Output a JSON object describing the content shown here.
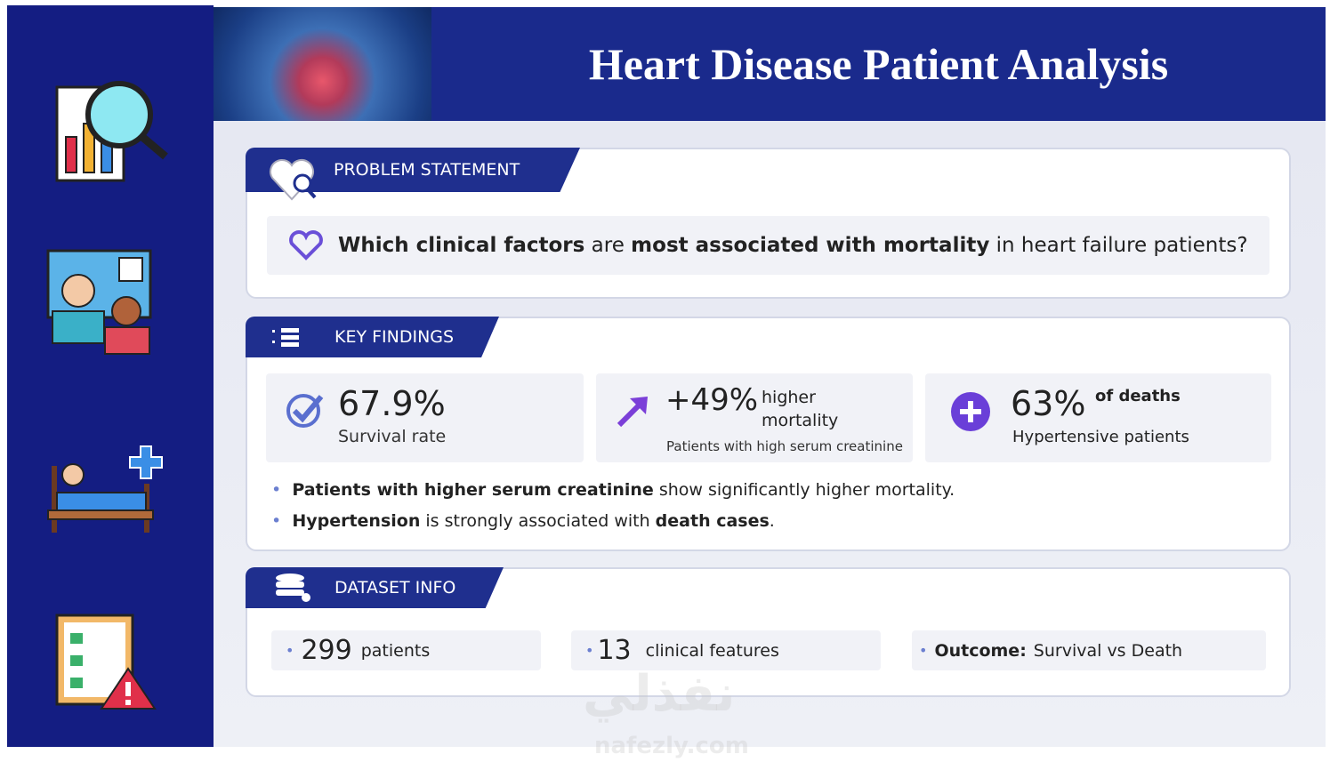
{
  "header": {
    "title": "Heart Disease Patient Analysis"
  },
  "problem": {
    "heading": "PROBLEM STATEMENT",
    "question": [
      "Which clinical factors",
      " are ",
      "most associated with mortality",
      " in heart failure patients?"
    ]
  },
  "findings": {
    "heading": "KEY FINDINGS",
    "stats": [
      {
        "value": "67.9%",
        "label": "Survival rate"
      },
      {
        "value": "+49%",
        "suffix": "higher mortality",
        "label": "Patients with high serum creatinine"
      },
      {
        "value": "63%",
        "suffix": "of deaths",
        "label": "Hypertensive patients"
      }
    ],
    "bullets": [
      [
        "Patients with higher serum creatinine",
        " show significantly higher mortality."
      ],
      [
        "Hypertension",
        " is strongly associated with ",
        "death cases",
        "."
      ]
    ]
  },
  "dataset": {
    "heading": "DATASET INFO",
    "items": [
      {
        "value": "299",
        "label": "patients"
      },
      {
        "value": "13",
        "label": "clinical features"
      },
      {
        "value": "Outcome:",
        "label": "Survival vs Death"
      }
    ]
  },
  "watermark": {
    "arabic": "نفذلي",
    "latin": "nafezly.com"
  }
}
